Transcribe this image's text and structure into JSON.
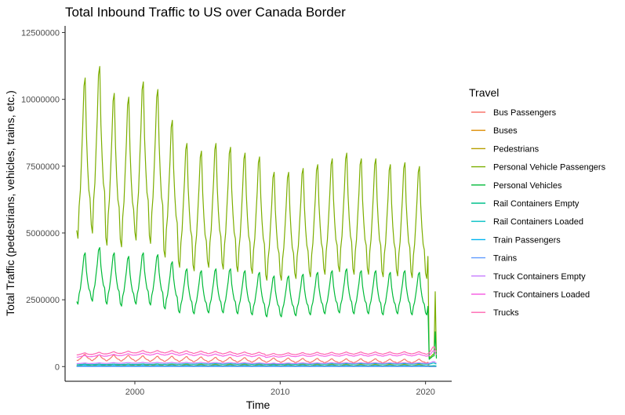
{
  "chart_data": {
    "type": "line",
    "title": "Total Inbound Traffic to US over Canada Border",
    "xlabel": "Time",
    "ylabel": "Total Traffic (pedestrians, vehicles, trains, etc.)",
    "xlim": [
      1995.2,
      2021.8
    ],
    "ylim": [
      -550000,
      12750000
    ],
    "x_ticks": [
      2000,
      2010,
      2020
    ],
    "x_tick_labels": [
      "2000",
      "2010",
      "2020"
    ],
    "y_ticks": [
      0,
      2500000,
      5000000,
      7500000,
      10000000,
      12500000
    ],
    "y_tick_labels": [
      "0",
      "2500000",
      "5000000",
      "7500000",
      "10000000",
      "12500000"
    ],
    "grid": false,
    "legend_position": "right",
    "legend_title": "Travel",
    "start_year": 1996,
    "end_year": 2020.75,
    "series": [
      {
        "name": "Bus Passengers",
        "color": "#F8766D",
        "annual": [
          330000,
          320000,
          310000,
          300000,
          290000,
          280000,
          280000,
          270000,
          260000,
          250000,
          250000,
          240000,
          240000,
          230000,
          230000,
          220000,
          220000,
          210000,
          210000,
          210000,
          210000,
          200000,
          200000,
          200000,
          200000
        ],
        "amplitude": 0.35,
        "y2020_end": 5000
      },
      {
        "name": "Buses",
        "color": "#DE8C00",
        "annual": [
          9000,
          9000,
          9000,
          9000,
          9000,
          9000,
          9000,
          9000,
          8000,
          8000,
          8000,
          8000,
          8000,
          8000,
          8000,
          8000,
          8000,
          8000,
          8000,
          8000,
          8000,
          8000,
          8000,
          8000,
          8000
        ],
        "amplitude": 0.3,
        "y2020_end": 200
      },
      {
        "name": "Pedestrians",
        "color": "#B79F00",
        "annual": [
          60000,
          60000,
          60000,
          60000,
          60000,
          60000,
          55000,
          55000,
          55000,
          55000,
          55000,
          55000,
          55000,
          55000,
          55000,
          55000,
          55000,
          55000,
          55000,
          55000,
          55000,
          55000,
          55000,
          55000,
          55000
        ],
        "amplitude": 0.5,
        "y2020_end": 2000
      },
      {
        "name": "Personal Vehicle Passengers",
        "color": "#7CAE00",
        "annual": [
          7500000,
          7800000,
          7100000,
          7000000,
          7400000,
          7200000,
          6400000,
          5800000,
          5600000,
          5800000,
          5700000,
          5550000,
          5450000,
          5050000,
          5050000,
          5150000,
          5250000,
          5400000,
          5550000,
          5400000,
          5400000,
          5250000,
          5300000,
          5200000,
          5150000
        ],
        "amplitude": 0.4,
        "y2020_end": 350000,
        "y2020_last": 2800000
      },
      {
        "name": "Personal Vehicles",
        "color": "#00BA38",
        "annual": [
          3200000,
          3350000,
          3200000,
          3100000,
          3200000,
          3150000,
          2950000,
          2750000,
          2700000,
          2750000,
          2750000,
          2700000,
          2650000,
          2550000,
          2550000,
          2600000,
          2650000,
          2700000,
          2750000,
          2700000,
          2700000,
          2650000,
          2700000,
          2650000,
          2650000
        ],
        "amplitude": 0.3,
        "y2020_end": 300000,
        "y2020_last": 1300000
      },
      {
        "name": "Rail Containers Empty",
        "color": "#00C08B",
        "annual": [
          25000,
          25000,
          25000,
          25000,
          25000,
          25000,
          25000,
          25000,
          25000,
          25000,
          25000,
          25000,
          25000,
          25000,
          25000,
          25000,
          25000,
          25000,
          25000,
          25000,
          25000,
          25000,
          25000,
          25000,
          25000
        ],
        "amplitude": 0.2,
        "y2020_end": 25000
      },
      {
        "name": "Rail Containers Loaded",
        "color": "#00BFC4",
        "annual": [
          80000,
          82000,
          84000,
          86000,
          88000,
          90000,
          92000,
          94000,
          96000,
          98000,
          96000,
          94000,
          92000,
          88000,
          90000,
          92000,
          94000,
          96000,
          98000,
          100000,
          100000,
          100000,
          100000,
          100000,
          100000
        ],
        "amplitude": 0.1,
        "y2020_end": 100000
      },
      {
        "name": "Train Passengers",
        "color": "#00B4F0",
        "annual": [
          30000,
          30000,
          30000,
          30000,
          30000,
          30000,
          30000,
          30000,
          30000,
          30000,
          30000,
          30000,
          30000,
          30000,
          30000,
          30000,
          30000,
          30000,
          30000,
          30000,
          30000,
          30000,
          30000,
          30000,
          30000
        ],
        "amplitude": 0.3,
        "y2020_end": 2000
      },
      {
        "name": "Trains",
        "color": "#619CFF",
        "annual": [
          3000,
          3000,
          3000,
          3000,
          3000,
          3000,
          3000,
          3000,
          3000,
          3000,
          3000,
          3000,
          3000,
          3000,
          3000,
          3000,
          3000,
          3000,
          3000,
          3000,
          3000,
          3000,
          3000,
          3000,
          3000
        ],
        "amplitude": 0.1,
        "y2020_end": 3000
      },
      {
        "name": "Truck Containers Empty",
        "color": "#C77CFF",
        "annual": [
          120000,
          125000,
          130000,
          135000,
          140000,
          140000,
          140000,
          140000,
          140000,
          135000,
          135000,
          130000,
          125000,
          115000,
          120000,
          125000,
          125000,
          130000,
          130000,
          130000,
          130000,
          130000,
          130000,
          130000,
          130000
        ],
        "amplitude": 0.1,
        "y2020_end": 140000
      },
      {
        "name": "Truck Containers Loaded",
        "color": "#F564E3",
        "annual": [
          380000,
          400000,
          420000,
          440000,
          460000,
          460000,
          460000,
          450000,
          440000,
          430000,
          420000,
          410000,
          400000,
          370000,
          390000,
          400000,
          410000,
          410000,
          420000,
          420000,
          420000,
          420000,
          430000,
          430000,
          420000
        ],
        "amplitude": 0.08,
        "y2020_end": 450000
      },
      {
        "name": "Trucks",
        "color": "#FF64B0",
        "annual": [
          470000,
          490000,
          510000,
          530000,
          550000,
          550000,
          550000,
          540000,
          530000,
          520000,
          510000,
          500000,
          490000,
          450000,
          470000,
          480000,
          490000,
          490000,
          500000,
          500000,
          500000,
          500000,
          510000,
          510000,
          500000
        ],
        "amplitude": 0.08,
        "y2020_end": 560000
      }
    ]
  }
}
